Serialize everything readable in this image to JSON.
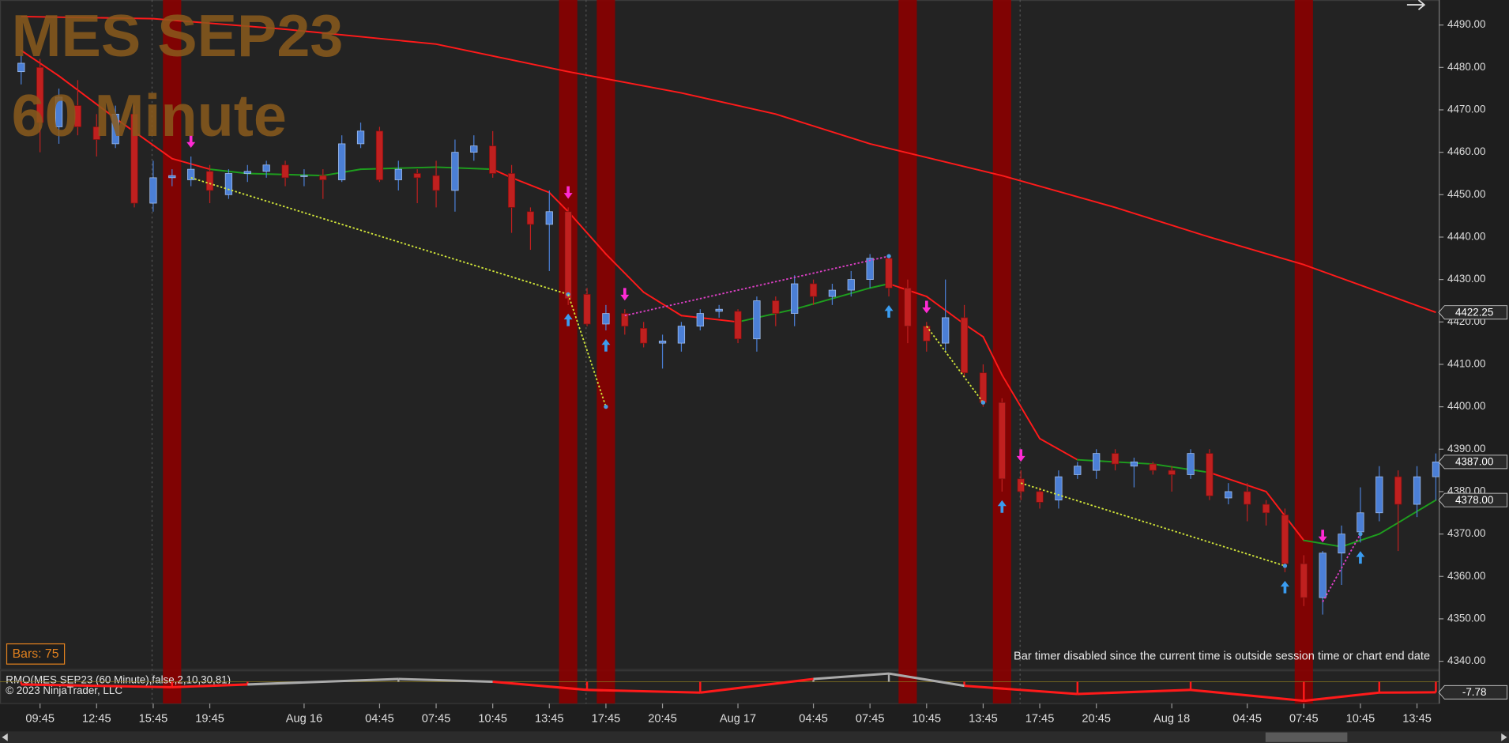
{
  "chart_data": {
    "type": "candlestick",
    "title": "MES SEP23",
    "subtitle": "60 Minute",
    "categories": [
      null,
      "09:45",
      null,
      null,
      "12:45",
      null,
      null,
      "15:45",
      null,
      null,
      "19:45",
      null,
      null,
      null,
      null,
      "Aug 16",
      null,
      null,
      null,
      "04:45",
      null,
      null,
      "07:45",
      null,
      null,
      "10:45",
      null,
      null,
      "13:45",
      null,
      null,
      "17:45",
      null,
      null,
      "20:45",
      null,
      null,
      null,
      "Aug 17",
      null,
      null,
      null,
      "04:45",
      null,
      null,
      "07:45",
      null,
      null,
      "10:45",
      null,
      null,
      "13:45",
      null,
      null,
      "17:45",
      null,
      null,
      "20:45",
      null,
      null,
      null,
      "Aug 18",
      null,
      null,
      null,
      "04:45",
      null,
      null,
      "07:45",
      null,
      null,
      "10:45",
      null,
      null,
      "13:45",
      null
    ],
    "open": [
      4479,
      4480,
      4466,
      4471,
      4466,
      4462,
      4469,
      4448,
      4454,
      4453.5,
      4455.5,
      4450,
      4455,
      4455.5,
      4457,
      4454.5,
      4454.5,
      4453.5,
      4462,
      4465,
      4453.5,
      4455,
      4454.5,
      4451,
      4460,
      4461.5,
      4455,
      4446,
      4443,
      4446,
      4426.5,
      4419.5,
      4422,
      4418.5,
      4415,
      4415,
      4419,
      4422.5,
      4422.5,
      4416,
      4425,
      4422,
      4429,
      4426,
      4427.5,
      4430,
      4435,
      4428,
      4419,
      4415,
      4421,
      4408,
      4401,
      4383,
      4380,
      4378,
      4384,
      4385,
      4389,
      4386,
      4386.5,
      4385,
      4384,
      4389,
      4378.5,
      4380,
      4377,
      4374.5,
      4363,
      4355,
      4365.5,
      4370.5,
      4375,
      4383.5,
      4377,
      4383.5
    ],
    "high": [
      4483,
      4482,
      4475,
      4477,
      4469,
      4471,
      4471,
      4458,
      4456,
      4459,
      4457,
      4456,
      4457,
      4458,
      4458,
      4456,
      4456,
      4464,
      4467,
      4466,
      4458,
      4456,
      4458,
      4463,
      4464,
      4465,
      4457,
      4447,
      4451,
      4447,
      4428,
      4424,
      4423,
      4420,
      4417,
      4420,
      4423,
      4424,
      4423,
      4426,
      4426,
      4431,
      4430,
      4429,
      4432,
      4436,
      4436,
      4430,
      4420,
      4430,
      4424,
      4410,
      4402,
      4385,
      4381,
      4385,
      4387,
      4390,
      4390,
      4388,
      4387,
      4386,
      4390,
      4390,
      4382,
      4382,
      4378,
      4376,
      4365,
      4366,
      4372,
      4381,
      4386,
      4385,
      4386,
      4389
    ],
    "low": [
      4476,
      4460,
      4462,
      4464,
      4459,
      4461,
      4447,
      4446,
      4452,
      4452,
      4448,
      4449,
      4453,
      4454,
      4452,
      4452,
      4449,
      4453,
      4461,
      4453,
      4451,
      4448,
      4447,
      4446,
      4458,
      4454,
      4441,
      4437,
      4432,
      4424,
      4419,
      4418,
      4417,
      4414,
      4409,
      4413,
      4418,
      4421,
      4415,
      4413,
      4419,
      4419,
      4424,
      4424,
      4426,
      4428,
      4426,
      4415,
      4413,
      4413,
      4407,
      4400,
      4380,
      4378,
      4376,
      4376,
      4383,
      4383,
      4385,
      4381,
      4384,
      4380,
      4383,
      4378,
      4377,
      4373,
      4372,
      4361,
      4353,
      4351,
      4358,
      4368,
      4373,
      4366,
      4374,
      4378
    ],
    "close": [
      4481,
      4467,
      4473,
      4466,
      4463,
      4469,
      4448,
      4454,
      4454.5,
      4456,
      4451,
      4455,
      4455.5,
      4457,
      4454,
      4454.5,
      4453.5,
      4462,
      4465,
      4453.5,
      4456,
      4454,
      4451,
      4460,
      4461.5,
      4455,
      4447,
      4443,
      4446,
      4425.5,
      4419.5,
      4422,
      4419,
      4415,
      4415.5,
      4419,
      4422,
      4423,
      4416,
      4425,
      4422,
      4429,
      4426,
      4427.5,
      4430,
      4435,
      4428,
      4419,
      4415.5,
      4421,
      4408,
      4401,
      4383,
      4380,
      4377.5,
      4383.5,
      4386,
      4389,
      4386.5,
      4387,
      4385,
      4384,
      4389,
      4379,
      4380,
      4377,
      4375,
      4363,
      4355,
      4365.5,
      4370,
      4375,
      4383.5,
      4377,
      4383.5,
      4387
    ],
    "up_color": "#4b7fd6",
    "down_color": "#c0201f",
    "ylim": [
      4338.2,
      4495.9
    ],
    "yticks": [
      {
        "value": 4490,
        "label": "4490.00"
      },
      {
        "value": 4480,
        "label": "4480.00"
      },
      {
        "value": 4470,
        "label": "4470.00"
      },
      {
        "value": 4460,
        "label": "4460.00"
      },
      {
        "value": 4450,
        "label": "4450.00"
      },
      {
        "value": 4440,
        "label": "4440.00"
      },
      {
        "value": 4430,
        "label": "4430.00"
      },
      {
        "value": 4420,
        "label": "4420.00"
      },
      {
        "value": 4410,
        "label": "4410.00"
      },
      {
        "value": 4400,
        "label": "4400.00"
      },
      {
        "value": 4390,
        "label": "4390.00"
      },
      {
        "value": 4380,
        "label": "4380.00"
      },
      {
        "value": 4370,
        "label": "4370.00"
      },
      {
        "value": 4360,
        "label": "4360.00"
      },
      {
        "value": 4350,
        "label": "4350.00"
      },
      {
        "value": 4340,
        "label": "4340.00"
      }
    ],
    "highlight_bars": [
      8,
      29,
      31,
      47,
      52,
      68
    ],
    "highlight_color": "#8b0000",
    "moving_averages": [
      {
        "x": [
          0,
          7,
          14,
          22,
          29,
          35,
          40,
          45,
          52,
          58,
          63,
          68,
          75
        ],
        "values": [
          4492,
          4491.5,
          4489,
          4485.5,
          4479,
          4474,
          4469,
          4462,
          4454.5,
          4447,
          4440,
          4433.5,
          4422.25
        ],
        "color": "#ff1a1a"
      },
      {
        "x": [
          0,
          2,
          5,
          8,
          10,
          12,
          16,
          18,
          22,
          25,
          26,
          28,
          29,
          31,
          33,
          35,
          38,
          41,
          45,
          46,
          48,
          50,
          51,
          52,
          54,
          56,
          60,
          63,
          66,
          68,
          70,
          72,
          75
        ],
        "values": [
          4484,
          4478,
          4468,
          4458.5,
          4456,
          4455,
          4454.5,
          4456,
          4456.5,
          4456,
          4454,
          4450.5,
          4446,
          4436,
          4427,
          4421.5,
          4420,
          4423,
          4428,
          4429,
          4426,
          4419.5,
          4416.5,
          4407.5,
          4392.5,
          4387.5,
          4386.5,
          4384.5,
          4380,
          4368.5,
          4367,
          4370,
          4378
        ],
        "colors": [
          "#ff1a1a",
          "#ff1a1a",
          "#ff1a1a",
          "#ff1a1a",
          "#ff1a1a",
          "#1e9e1e",
          "#1e9e1e",
          "#1e9e1e",
          "#1e9e1e",
          "#1e9e1e",
          "#ff1a1a",
          "#ff1a1a",
          "#ff1a1a",
          "#ff1a1a",
          "#ff1a1a",
          "#ff1a1a",
          "#ff1a1a",
          "#1e9e1e",
          "#1e9e1e",
          "#1e9e1e",
          "#ff1a1a",
          "#ff1a1a",
          "#ff1a1a",
          "#ff1a1a",
          "#ff1a1a",
          "#ff1a1a",
          "#1e9e1e",
          "#1e9e1e",
          "#ff1a1a",
          "#ff1a1a",
          "#1e9e1e",
          "#1e9e1e",
          "#1e9e1e"
        ]
      }
    ],
    "down_arrows": [
      9,
      29,
      32,
      48,
      53,
      69
    ],
    "up_arrows": [
      29,
      31,
      46,
      52,
      67,
      71
    ],
    "trend_lines": [
      {
        "x": [
          9,
          29
        ],
        "values": [
          4454,
          4426.5
        ],
        "color": "#d4e83a"
      },
      {
        "x": [
          29,
          31
        ],
        "values": [
          4426.5,
          4400
        ],
        "color": "#d4e83a"
      },
      {
        "x": [
          48,
          51
        ],
        "values": [
          4419,
          4401
        ],
        "color": "#d4e83a"
      },
      {
        "x": [
          53,
          67
        ],
        "values": [
          4382,
          4362.5
        ],
        "color": "#d4e83a"
      },
      {
        "x": [
          32,
          46
        ],
        "values": [
          4421.5,
          4435.5
        ],
        "color": "#e040c8"
      },
      {
        "x": [
          69,
          71
        ],
        "values": [
          4354,
          4370
        ],
        "color": "#e040c8"
      }
    ],
    "price_markers": [
      4422.25,
      {
        "value": 4387,
        "label": "4387.00"
      },
      {
        "value": 4378,
        "label": "4378.00"
      }
    ],
    "indicator": {
      "label": "RMO(MES SEP23 (60 Minute),false,2,10,30,81)",
      "x": [
        0,
        8,
        12,
        20,
        25,
        30,
        36,
        42,
        46,
        50,
        56,
        62,
        68,
        72,
        75
      ],
      "values": [
        -2,
        -4,
        -2,
        2,
        0,
        -6,
        -8,
        2,
        6,
        -3,
        -9,
        -6,
        -14,
        -8,
        -7.78
      ],
      "ylim": [
        -16,
        8
      ],
      "last_value": -7.78
    },
    "bars_label": "Bars: 75",
    "timer_text": "Bar timer disabled since the current time is outside session time or chart end date",
    "copyright": "© 2023 NinjaTrader, LLC"
  }
}
